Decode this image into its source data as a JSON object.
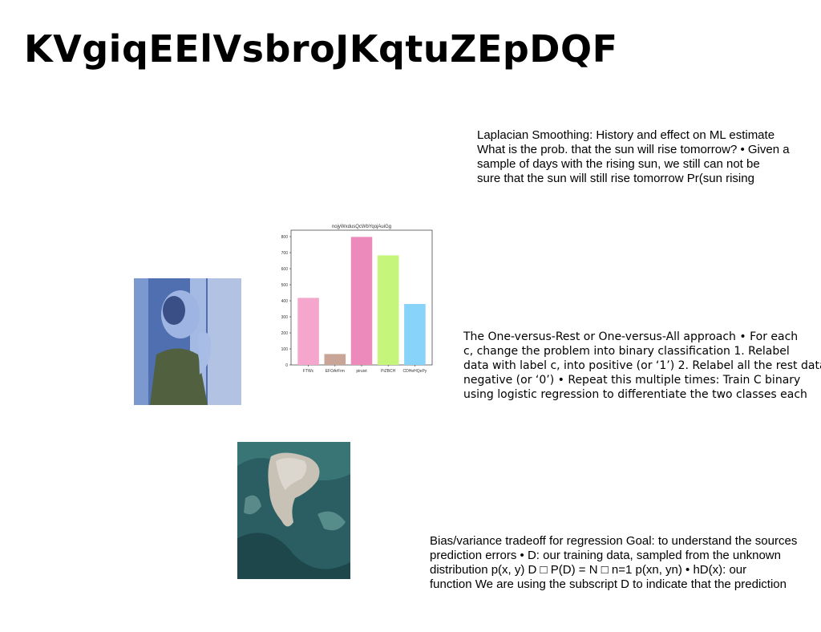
{
  "slide": {
    "title": "KVgiqEElVsbroJKqtuZEpDQF",
    "blocks": [
      {
        "lines": [
          "Laplacian Smoothing: History and effect on ML estimate",
          "What is the prob. that the sun will rise tomorrow? • Given a",
          "sample of days with the rising sun, we still can not be",
          "sure that the sun will still rise tomorrow Pr(sun rising"
        ]
      },
      {
        "lines": [
          "The One-versus-Rest or One-versus-All approach • For each",
          "c, change the problem into binary classification 1. Relabel",
          "data with label c, into positive (or ‘1’) 2. Relabel all the rest data",
          "negative (or ‘0’) • Repeat this multiple times: Train C binary",
          "using logistic regression to differentiate the two classes each"
        ]
      },
      {
        "lines": [
          "Bias/variance tradeoff for regression Goal: to understand the sources",
          "prediction errors • D: our training data, sampled from the unknown",
          "distribution p(x, y) D □ P(D) = N □ n=1 p(xn, yn) • hD(x): our",
          "function We are using the subscript D to indicate that the prediction"
        ]
      }
    ]
  },
  "chart_data": {
    "type": "bar",
    "title": "nojyWxdusQcWbYqojAuiGg",
    "categories": [
      "FTWc",
      "EFOArFrm",
      "piruivt",
      "PiZBCH",
      "CDHeHQePy"
    ],
    "values": [
      418,
      68,
      798,
      683,
      380
    ],
    "colors": [
      "#f4a6cc",
      "#c9a597",
      "#ec8abb",
      "#c6f57c",
      "#87d3fa"
    ],
    "ylim": [
      0,
      840
    ],
    "yticks": [
      0,
      100,
      200,
      300,
      400,
      500,
      600,
      700,
      800
    ]
  }
}
